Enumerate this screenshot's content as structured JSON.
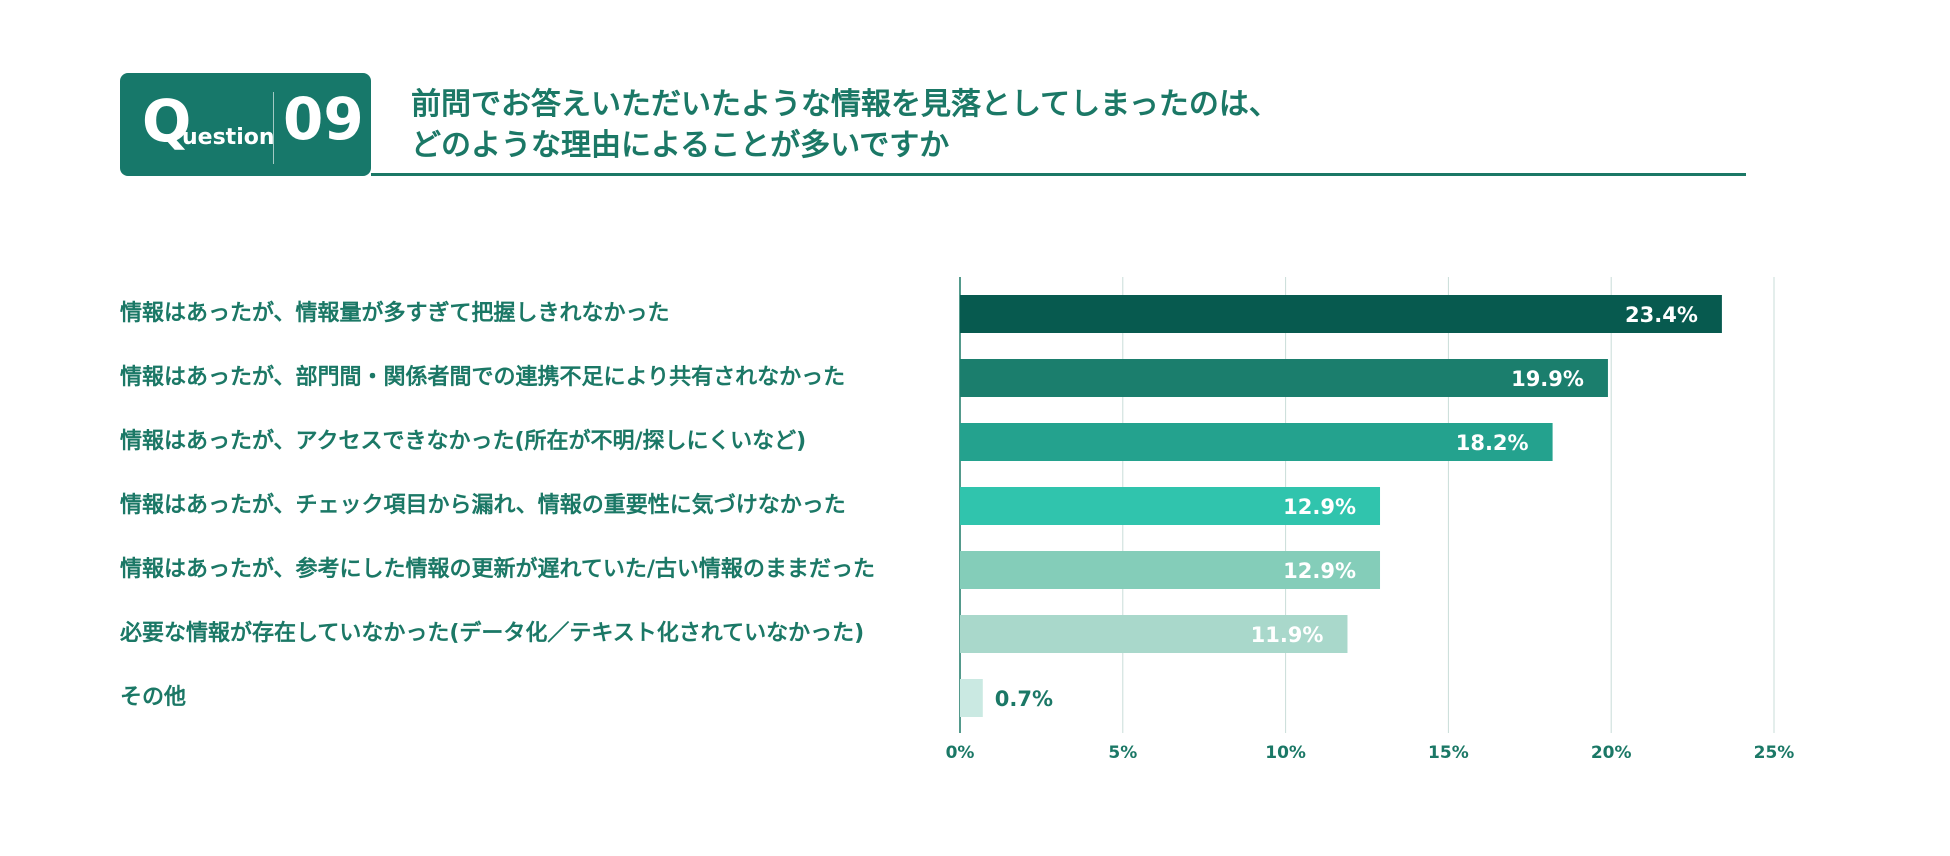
{
  "badge": {
    "letter": "Q",
    "word": "uestion",
    "number": "09"
  },
  "title_lines": [
    "前問でお答えいただいたような情報を見落としてしまったのは、",
    "どのような理由によることが多いですか"
  ],
  "chart_data": {
    "type": "bar",
    "orientation": "horizontal",
    "categories": [
      "情報はあったが、情報量が多すぎて把握しきれなかった",
      "情報はあったが、部門間・関係者間での連携不足により共有されなかった",
      "情報はあったが、アクセスできなかった(所在が不明/探しにくいなど)",
      "情報はあったが、チェック項目から漏れ、情報の重要性に気づけなかった",
      "情報はあったが、参考にした情報の更新が遅れていた/古い情報のままだった",
      "必要な情報が存在していなかった(データ化／テキスト化されていなかった)",
      "その他"
    ],
    "values": [
      23.4,
      19.9,
      18.2,
      12.9,
      12.9,
      11.9,
      0.7
    ],
    "value_labels": [
      "23.4%",
      "19.9%",
      "18.2%",
      "12.9%",
      "12.9%",
      "11.9%",
      "0.7%"
    ],
    "bar_colors": [
      "#075a4f",
      "#1b7e6d",
      "#24a28e",
      "#30c4ad",
      "#84cdb9",
      "#a9d8cb",
      "#cae9e2"
    ],
    "xlim": [
      0,
      25
    ],
    "ticks": [
      0,
      5,
      10,
      15,
      20,
      25
    ],
    "tick_labels": [
      "0%",
      "5%",
      "10%",
      "15%",
      "20%",
      "25%"
    ],
    "grid": true,
    "xlabel": "",
    "ylabel": ""
  }
}
